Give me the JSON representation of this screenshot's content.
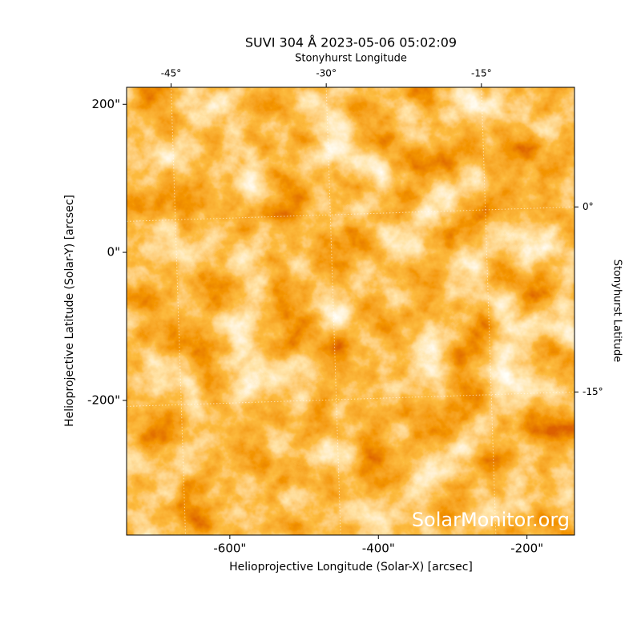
{
  "chart_data": {
    "type": "image",
    "title": "SUVI 304 Å 2023-05-06 05:02:09",
    "x_label": "Helioprojective Longitude (Solar-X) [arcsec]",
    "y_label": "Helioprojective Latitude (Solar-Y) [arcsec]",
    "x2_label": "Stonyhurst Longitude",
    "y2_label": "Stonyhurst Latitude",
    "watermark": "SolarMonitor.org",
    "xlim": [
      -739,
      -136
    ],
    "ylim": [
      -382,
      223
    ],
    "xticks": [
      {
        "value": -600,
        "label": "-600\""
      },
      {
        "value": -400,
        "label": "-400\""
      },
      {
        "value": -200,
        "label": "-200\""
      }
    ],
    "yticks": [
      {
        "value": 200,
        "label": "200\""
      },
      {
        "value": 0,
        "label": "0\""
      },
      {
        "value": -200,
        "label": "-200\""
      }
    ],
    "x2lim": [
      -49.3,
      -6
    ],
    "x2ticks": [
      {
        "value": -45,
        "label": "-45°"
      },
      {
        "value": -30,
        "label": "-30°"
      },
      {
        "value": -15,
        "label": "-15°"
      }
    ],
    "y2lim": [
      -26.6,
      9.7
    ],
    "y2ticks": [
      {
        "value": 0,
        "label": "0°"
      },
      {
        "value": -15,
        "label": "-15°"
      }
    ],
    "grid": true
  }
}
